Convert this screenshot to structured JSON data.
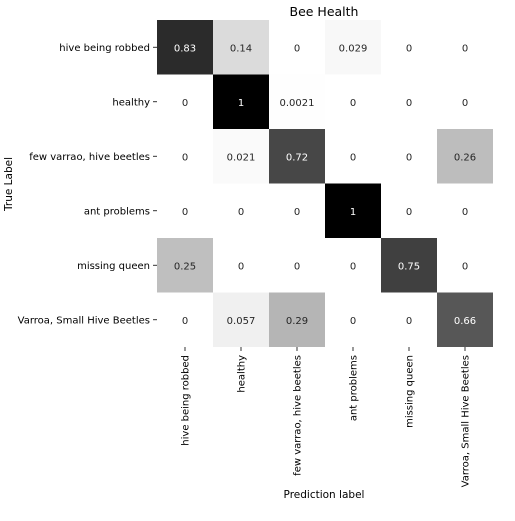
{
  "chart_data": {
    "type": "heatmap",
    "title": "Bee Health",
    "xlabel": "Prediction label",
    "ylabel": "True Label",
    "colormap": "greys",
    "vmin": 0,
    "vmax": 1,
    "grid": false,
    "x_categories": [
      "hive being robbed",
      "healthy",
      "few varrao, hive beetles",
      "ant problems",
      "missing queen",
      "Varroa, Small Hive Beetles"
    ],
    "y_categories": [
      "hive being robbed",
      "healthy",
      "few varrao, hive beetles",
      "ant problems",
      "missing queen",
      "Varroa, Small Hive Beetles"
    ],
    "values": [
      [
        0.83,
        0.14,
        0,
        0.029,
        0,
        0
      ],
      [
        0,
        1,
        0.0021,
        0,
        0,
        0
      ],
      [
        0,
        0.021,
        0.72,
        0,
        0,
        0.26
      ],
      [
        0,
        0,
        0,
        1,
        0,
        0
      ],
      [
        0.25,
        0,
        0,
        0,
        0.75,
        0
      ],
      [
        0,
        0.057,
        0.29,
        0,
        0,
        0.66
      ]
    ],
    "cell_labels": [
      [
        "0.83",
        "0.14",
        "0",
        "0.029",
        "0",
        "0"
      ],
      [
        "0",
        "1",
        "0.0021",
        "0",
        "0",
        "0"
      ],
      [
        "0",
        "0.021",
        "0.72",
        "0",
        "0",
        "0.26"
      ],
      [
        "0",
        "0",
        "0",
        "1",
        "0",
        "0"
      ],
      [
        "0.25",
        "0",
        "0",
        "0",
        "0.75",
        "0"
      ],
      [
        "0",
        "0.057",
        "0.29",
        "0",
        "0",
        "0.66"
      ]
    ]
  }
}
